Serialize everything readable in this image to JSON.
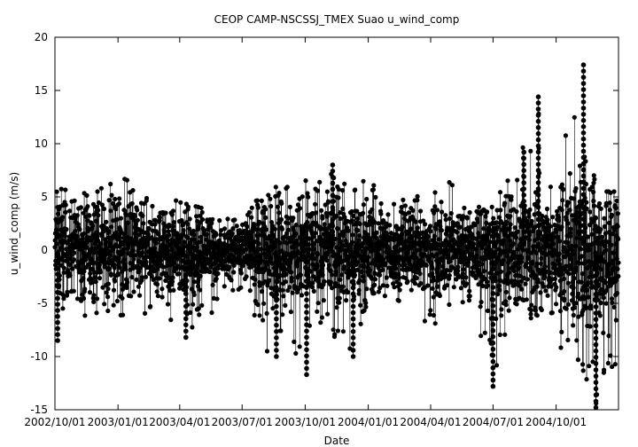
{
  "chart_data": {
    "type": "scatter",
    "title": "CEOP  CAMP-NSCSSJ_TMEX Suao  u_wind_comp",
    "xlabel": "Date",
    "ylabel": "u_wind_comp (m/s)",
    "xlim": [
      "2002-10-01",
      "2004-12-31"
    ],
    "ylim": [
      -15,
      20
    ],
    "yticks": [
      -15,
      -10,
      -5,
      0,
      5,
      10,
      15,
      20
    ],
    "xticks": [
      {
        "date": "2002-10-01",
        "label": "2002/10/01"
      },
      {
        "date": "2003-01-01",
        "label": "2003/01/01"
      },
      {
        "date": "2003-04-01",
        "label": "2003/04/01"
      },
      {
        "date": "2003-07-01",
        "label": "2003/07/01"
      },
      {
        "date": "2003-10-01",
        "label": "2003/10/01"
      },
      {
        "date": "2004-01-01",
        "label": "2004/01/01"
      },
      {
        "date": "2004-04-01",
        "label": "2004/04/01"
      },
      {
        "date": "2004-07-01",
        "label": "2004/07/01"
      },
      {
        "date": "2004-10-01",
        "label": "2004/10/01"
      }
    ],
    "grid": false,
    "legend": "none",
    "marker_color": "#000000",
    "envelope": [
      {
        "date": "2002-10-01",
        "low": -8.5,
        "high": 6.5
      },
      {
        "date": "2002-11-01",
        "low": -6.5,
        "high": 5.5
      },
      {
        "date": "2002-12-01",
        "low": -6.0,
        "high": 6.0
      },
      {
        "date": "2003-01-01",
        "low": -6.5,
        "high": 7.0
      },
      {
        "date": "2003-02-01",
        "low": -7.0,
        "high": 6.5
      },
      {
        "date": "2003-03-01",
        "low": -6.5,
        "high": 6.0
      },
      {
        "date": "2003-04-01",
        "low": -8.2,
        "high": 4.5
      },
      {
        "date": "2003-05-01",
        "low": -7.5,
        "high": 4.0
      },
      {
        "date": "2003-06-01",
        "low": -4.5,
        "high": 3.5
      },
      {
        "date": "2003-07-01",
        "low": -4.0,
        "high": 2.5
      },
      {
        "date": "2003-08-01",
        "low": -10.0,
        "high": 6.5
      },
      {
        "date": "2003-09-01",
        "low": -7.5,
        "high": 6.0
      },
      {
        "date": "2003-10-01",
        "low": -11.7,
        "high": 6.5
      },
      {
        "date": "2003-11-01",
        "low": -7.0,
        "high": 8.0
      },
      {
        "date": "2003-12-01",
        "low": -10.0,
        "high": 6.5
      },
      {
        "date": "2004-01-01",
        "low": -6.5,
        "high": 7.0
      },
      {
        "date": "2004-02-01",
        "low": -5.5,
        "high": 6.0
      },
      {
        "date": "2004-03-01",
        "low": -5.0,
        "high": 5.5
      },
      {
        "date": "2004-04-01",
        "low": -7.5,
        "high": 6.0
      },
      {
        "date": "2004-05-01",
        "low": -5.5,
        "high": 6.5
      },
      {
        "date": "2004-06-01",
        "low": -5.0,
        "high": 5.0
      },
      {
        "date": "2004-07-01",
        "low": -12.8,
        "high": 4.0
      },
      {
        "date": "2004-08-01",
        "low": -6.0,
        "high": 9.0
      },
      {
        "date": "2004-09-01",
        "low": -6.5,
        "high": 14.4
      },
      {
        "date": "2004-10-01",
        "low": -10.5,
        "high": 6.5
      },
      {
        "date": "2004-11-01",
        "low": -11.0,
        "high": 17.4
      },
      {
        "date": "2004-12-01",
        "low": -14.8,
        "high": 5.5
      }
    ],
    "notable_points": [
      {
        "date": "2002-10-05",
        "value": -8.5
      },
      {
        "date": "2003-04-10",
        "value": -8.2
      },
      {
        "date": "2003-08-20",
        "value": -10.0
      },
      {
        "date": "2003-10-03",
        "value": -11.7
      },
      {
        "date": "2003-11-10",
        "value": 8.0
      },
      {
        "date": "2003-12-10",
        "value": -10.0
      },
      {
        "date": "2004-07-01",
        "value": -12.8
      },
      {
        "date": "2004-08-15",
        "value": 9.2
      },
      {
        "date": "2004-09-05",
        "value": 14.4
      },
      {
        "date": "2004-11-10",
        "value": 17.4
      },
      {
        "date": "2004-11-28",
        "value": -14.8
      }
    ]
  }
}
